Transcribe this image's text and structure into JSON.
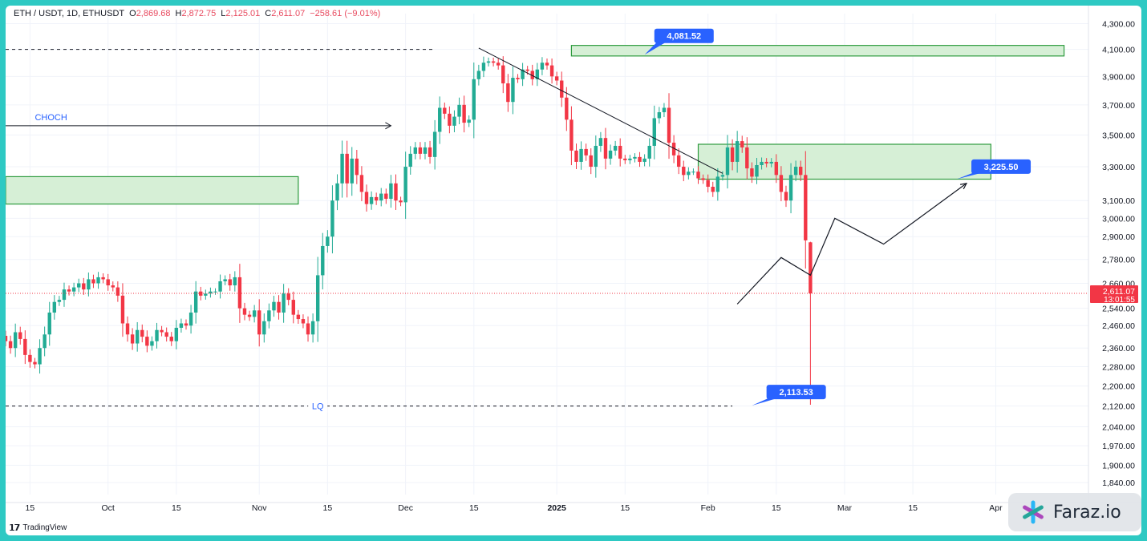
{
  "header": {
    "symbol": "ETH / USDT, 1D, ETHUSDT",
    "o_label": "O",
    "o_value": "2,869.68",
    "h_label": "H",
    "h_value": "2,872.75",
    "l_label": "L",
    "l_value": "2,125.01",
    "c_label": "C",
    "c_value": "2,611.07",
    "change": "−258.61 (−9.01%)"
  },
  "footer": {
    "platform": "TradingView"
  },
  "watermark": {
    "brand": "Faraz.io"
  },
  "colors": {
    "up": "#22ab94",
    "down": "#f23645",
    "zone_fill": "#d6efd6",
    "zone_stroke": "#2e9b3e",
    "label_bg": "#2962ff",
    "price_tag": "#f23645",
    "frame": "#2ec9c3"
  },
  "chart_data": {
    "type": "candlestick",
    "title": "ETH / USDT, 1D, ETHUSDT",
    "y_scale": "log",
    "ylim": [
      1800,
      4380
    ],
    "y_ticks": [
      4300,
      4100,
      3900,
      3700,
      3500,
      3300,
      3100,
      3000,
      2900,
      2780,
      2660,
      2540,
      2460,
      2360,
      2280,
      2200,
      2120,
      2040,
      1970,
      1900,
      1840
    ],
    "y_tick_labels": [
      "4,300.00",
      "4,100.00",
      "3,900.00",
      "3,700.00",
      "3,500.00",
      "3,300.00",
      "3,100.00",
      "3,000.00",
      "2,900.00",
      "2,780.00",
      "2,660.00",
      "2,540.00",
      "2,460.00",
      "2,360.00",
      "2,280.00",
      "2,200.00",
      "2,120.00",
      "2,040.00",
      "1,970.00",
      "1,900.00",
      "1,840.00"
    ],
    "x_range": [
      "2024-09-10",
      "2025-04-20"
    ],
    "x_ticks": [
      {
        "date": "2024-09-15",
        "label": "15"
      },
      {
        "date": "2024-10-01",
        "label": "Oct"
      },
      {
        "date": "2024-10-15",
        "label": "15"
      },
      {
        "date": "2024-11-01",
        "label": "Nov"
      },
      {
        "date": "2024-11-15",
        "label": "15"
      },
      {
        "date": "2024-12-01",
        "label": "Dec"
      },
      {
        "date": "2024-12-15",
        "label": "15"
      },
      {
        "date": "2025-01-01",
        "label": "2025"
      },
      {
        "date": "2025-01-15",
        "label": "15"
      },
      {
        "date": "2025-02-01",
        "label": "Feb"
      },
      {
        "date": "2025-02-15",
        "label": "15"
      },
      {
        "date": "2025-03-01",
        "label": "Mar"
      },
      {
        "date": "2025-03-15",
        "label": "15"
      },
      {
        "date": "2025-04-01",
        "label": "Apr"
      }
    ],
    "start_date": "2024-09-10",
    "closes": [
      2390,
      2360,
      2430,
      2400,
      2330,
      2300,
      2290,
      2360,
      2420,
      2520,
      2570,
      2580,
      2630,
      2620,
      2640,
      2660,
      2630,
      2680,
      2660,
      2690,
      2680,
      2650,
      2640,
      2600,
      2470,
      2420,
      2380,
      2440,
      2410,
      2370,
      2390,
      2440,
      2430,
      2410,
      2390,
      2450,
      2470,
      2460,
      2520,
      2620,
      2600,
      2610,
      2620,
      2620,
      2670,
      2680,
      2650,
      2690,
      2540,
      2510,
      2500,
      2530,
      2420,
      2480,
      2530,
      2570,
      2520,
      2610,
      2580,
      2510,
      2490,
      2470,
      2420,
      2480,
      2700,
      2850,
      2900,
      3100,
      3200,
      3380,
      3200,
      3350,
      3250,
      3150,
      3080,
      3120,
      3100,
      3140,
      3110,
      3200,
      3100,
      3090,
      3300,
      3380,
      3420,
      3380,
      3420,
      3360,
      3520,
      3680,
      3640,
      3560,
      3620,
      3700,
      3580,
      3600,
      3880,
      3940,
      4000,
      4010,
      4000,
      3980,
      3850,
      3720,
      3890,
      3880,
      3950,
      3940,
      3880,
      3950,
      4000,
      3980,
      3900,
      3870,
      3750,
      3600,
      3400,
      3330,
      3410,
      3370,
      3300,
      3430,
      3480,
      3350,
      3400,
      3430,
      3350,
      3340,
      3350,
      3360,
      3330,
      3350,
      3430,
      3610,
      3650,
      3680,
      3450,
      3370,
      3300,
      3250,
      3270,
      3270,
      3230,
      3220,
      3180,
      3150,
      3240,
      3250,
      3420,
      3330,
      3460,
      3420,
      3290,
      3240,
      3310,
      3330,
      3320,
      3330,
      3250,
      3150,
      3100,
      3250,
      3300,
      3250,
      2880,
      2611.07
    ],
    "last": {
      "open": 2869.68,
      "high": 2872.75,
      "low": 2125.01,
      "close": 2611.07,
      "date": "2025-02-03"
    },
    "annotations": {
      "choch_label": "CHOCH",
      "lq_label": "LQ",
      "lq_price": 2120,
      "upper_zone": {
        "top": 4130,
        "bottom": 4050,
        "from": "2025-01-04",
        "to": "2025-04-15",
        "label": "4,081.52"
      },
      "mid_zone": {
        "top": 3440,
        "bottom": 3225,
        "from": "2025-01-30",
        "to": "2025-03-31",
        "label": "3,225.50"
      },
      "left_zone": {
        "top": 3240,
        "bottom": 3080,
        "from": "2024-09-10",
        "to": "2024-11-09"
      },
      "low_label": "2,113.53",
      "price_tag": {
        "price": "2,611.07",
        "countdown": "13:01:55"
      },
      "trendline": [
        {
          "date": "2024-12-16",
          "price": 4110
        },
        {
          "date": "2025-02-04",
          "price": 3260
        }
      ],
      "projection": [
        {
          "date": "2025-02-07",
          "price": 2560
        },
        {
          "date": "2025-02-16",
          "price": 2790
        },
        {
          "date": "2025-02-22",
          "price": 2700
        },
        {
          "date": "2025-02-27",
          "price": 3000
        },
        {
          "date": "2025-03-09",
          "price": 2860
        },
        {
          "date": "2025-03-26",
          "price": 3200
        }
      ],
      "hline_top": 4100
    }
  }
}
